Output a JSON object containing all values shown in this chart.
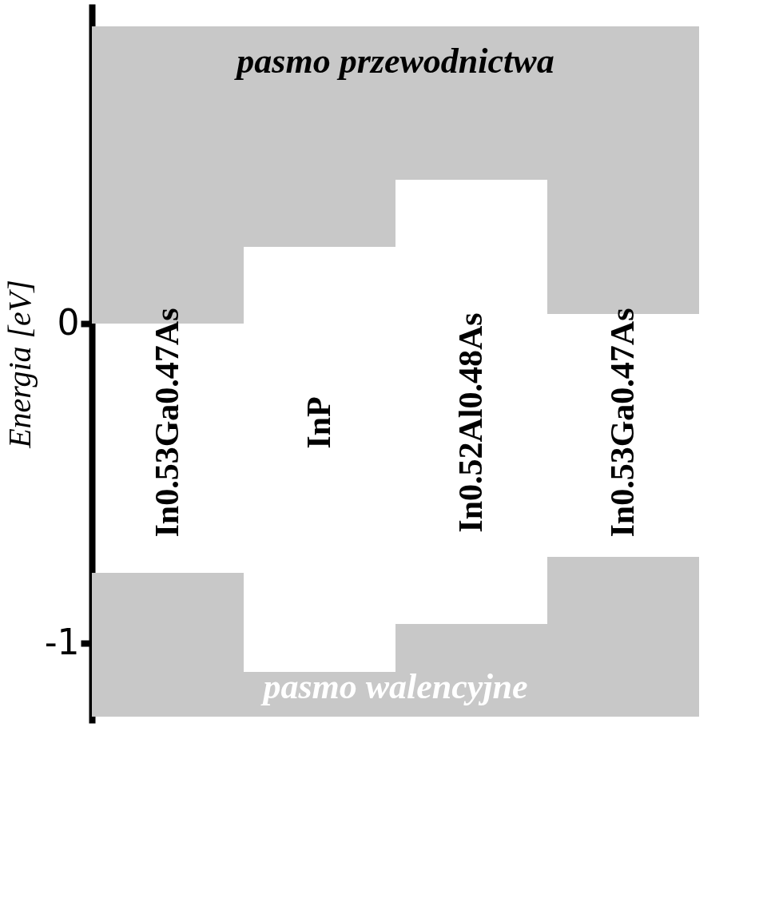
{
  "chart_data": {
    "type": "bar",
    "ylabel": "Energia [eV]",
    "categories": [
      "In0.53Ga0.47As",
      "InP",
      "In0.52Al0.48As",
      "In0.53Ga0.47As"
    ],
    "series": [
      {
        "name": "pasmo przewodnictwa",
        "color": "#c8c8c8",
        "values": [
          0.93,
          0.69,
          0.48,
          0.9
        ],
        "base": [
          0,
          0.24,
          0.45,
          0.03
        ]
      },
      {
        "name": "pasmo walencyjne",
        "color": "#c8c8c8",
        "values": [
          0.45,
          0.14,
          0.29,
          0.5
        ],
        "base": [
          -1.23,
          -1.23,
          -1.23,
          -1.23
        ]
      }
    ],
    "ylim": [
      -1.25,
      1.0
    ],
    "yticks": [
      -1,
      0
    ],
    "grid": false
  }
}
